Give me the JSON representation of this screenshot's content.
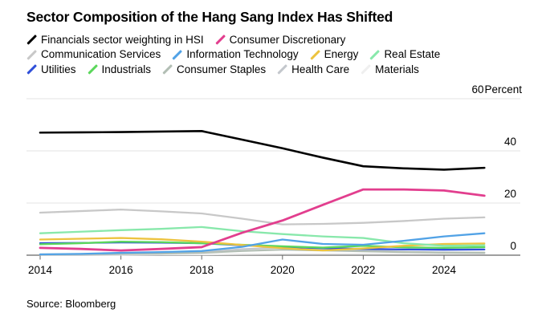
{
  "title": "Sector Composition of the Hang Sang Index Has Shifted",
  "source": "Source: Bloomberg",
  "chart_data": {
    "type": "line",
    "title": "Sector Composition of the Hang Sang Index Has Shifted",
    "xlabel": "",
    "ylabel": "Percent",
    "ylim": [
      0,
      60
    ],
    "y_ticks": [
      0,
      20,
      40,
      60
    ],
    "x_ticks": [
      2014,
      2016,
      2018,
      2020,
      2022,
      2024
    ],
    "x": [
      2014,
      2015,
      2016,
      2017,
      2018,
      2019,
      2020,
      2021,
      2022,
      2023,
      2024,
      2025
    ],
    "grid": "horizontal",
    "legend_position": "top",
    "legend_rows": [
      [
        0,
        1
      ],
      [
        2,
        3,
        4,
        5
      ],
      [
        6,
        7,
        8,
        9,
        10
      ]
    ],
    "colors": {
      "axis": "#666666",
      "gridline": "#e3e3e3",
      "accent_pink": "#e23e8e",
      "black": "#000000"
    },
    "series": [
      {
        "name": "Financials sector weighting in HSI",
        "color": "#000000",
        "width": 2.6,
        "values": [
          47.0,
          47.1,
          47.2,
          47.4,
          47.6,
          44.3,
          41.0,
          37.4,
          34.1,
          33.3,
          32.8,
          33.5
        ]
      },
      {
        "name": "Consumer Discretionary",
        "color": "#e23e8e",
        "width": 2.8,
        "values": [
          2.8,
          2.4,
          1.8,
          2.4,
          3.1,
          8.6,
          13.3,
          19.3,
          25.2,
          25.2,
          24.8,
          22.8
        ]
      },
      {
        "name": "Communication Services",
        "color": "#c8c8c8",
        "width": 2.3,
        "values": [
          16.3,
          16.9,
          17.5,
          16.8,
          16.0,
          14.0,
          11.8,
          12.0,
          12.4,
          13.1,
          14.0,
          14.5
        ]
      },
      {
        "name": "Information Technology",
        "color": "#51a2e6",
        "width": 2.3,
        "values": [
          0.3,
          0.5,
          0.9,
          1.2,
          1.6,
          3.2,
          6.0,
          4.3,
          4.0,
          5.5,
          7.2,
          8.4
        ]
      },
      {
        "name": "Energy",
        "color": "#ecc33f",
        "width": 2.3,
        "values": [
          6.0,
          6.3,
          6.6,
          6.1,
          5.2,
          3.9,
          2.7,
          1.8,
          2.6,
          3.6,
          4.3,
          4.5
        ]
      },
      {
        "name": "Real Estate",
        "color": "#88e8ab",
        "width": 2.3,
        "values": [
          8.4,
          9.0,
          9.6,
          10.1,
          10.8,
          9.2,
          8.1,
          7.2,
          6.6,
          4.6,
          3.6,
          3.8
        ]
      },
      {
        "name": "Utilities",
        "color": "#2f4fd9",
        "width": 2.3,
        "values": [
          4.6,
          4.7,
          4.9,
          4.8,
          4.6,
          3.8,
          3.2,
          2.7,
          2.4,
          2.2,
          2.1,
          2.2
        ]
      },
      {
        "name": "Industrials",
        "color": "#5bd75b",
        "width": 2.3,
        "values": [
          4.2,
          4.6,
          5.2,
          5.0,
          4.6,
          4.0,
          3.4,
          2.9,
          3.6,
          3.0,
          2.8,
          3.1
        ]
      },
      {
        "name": "Consumer Staples",
        "color": "#b2beb4",
        "width": 2.2,
        "values": [
          0.3,
          0.4,
          0.5,
          0.6,
          0.9,
          1.6,
          2.1,
          1.8,
          1.5,
          1.2,
          1.0,
          1.0
        ]
      },
      {
        "name": "Health Care",
        "color": "#c3c7cc",
        "width": 2.2,
        "values": [
          0.2,
          0.2,
          0.4,
          0.6,
          1.1,
          2.3,
          2.9,
          2.5,
          1.8,
          1.3,
          1.0,
          0.8
        ]
      },
      {
        "name": "Materials",
        "color": "#efefef",
        "width": 2.2,
        "values": [
          0.2,
          0.2,
          0.2,
          0.3,
          0.3,
          0.4,
          0.5,
          0.5,
          0.5,
          0.5,
          0.6,
          0.6
        ]
      }
    ]
  }
}
